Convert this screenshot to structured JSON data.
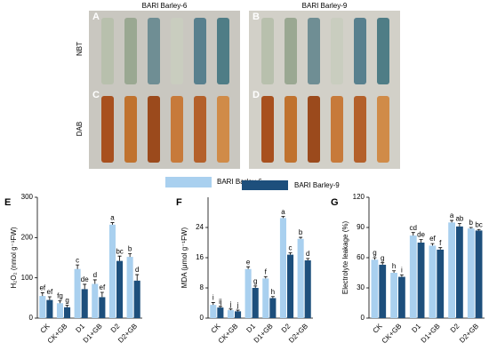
{
  "photos": {
    "col1": "BARI Barley-6",
    "col2": "BARI Barley-9",
    "row1": "NBT",
    "row2": "DAB",
    "panels": [
      "A",
      "B",
      "C",
      "D"
    ]
  },
  "chart_data": [
    {
      "type": "bar",
      "panel": "E",
      "ylabel": "H₂O₂ (nmol g⁻¹FW)",
      "ylim": [
        0,
        300
      ],
      "yticks": [
        0,
        100,
        200,
        300
      ],
      "categories": [
        "CK",
        "CK+GB",
        "D1",
        "D1+GB",
        "D2",
        "D2+GB"
      ],
      "series": [
        {
          "name": "BARI Barley-6",
          "color": "#a9d0ef",
          "values": [
            55,
            37,
            122,
            85,
            232,
            152
          ],
          "errors": [
            8,
            6,
            10,
            10,
            5,
            8
          ],
          "letters": [
            "ef",
            "fg",
            "c",
            "d",
            "a",
            "b"
          ]
        },
        {
          "name": "BARI Barley-9",
          "color": "#1d4f7c",
          "values": [
            45,
            27,
            72,
            52,
            142,
            93
          ],
          "errors": [
            8,
            5,
            12,
            12,
            12,
            15
          ],
          "letters": [
            "ef",
            "g",
            "de",
            "ef",
            "bc",
            "d"
          ]
        }
      ]
    },
    {
      "type": "bar",
      "panel": "F",
      "ylabel": "MDA (μmol g⁻¹FW)",
      "ylim": [
        0,
        32
      ],
      "yticks": [
        0,
        8,
        16,
        24
      ],
      "categories": [
        "CK",
        "CK+GB",
        "D1",
        "D1+GB",
        "D2",
        "D2+GB"
      ],
      "series": [
        {
          "name": "BARI Barley-6",
          "color": "#a9d0ef",
          "values": [
            3.5,
            2.1,
            13,
            10.5,
            26.5,
            21
          ],
          "errors": [
            0.6,
            0.3,
            0.6,
            0.5,
            0.4,
            0.4
          ],
          "letters": [
            "i",
            "j",
            "e",
            "f",
            "a",
            "b"
          ]
        },
        {
          "name": "BARI Barley-9",
          "color": "#1d4f7c",
          "values": [
            2.8,
            1.8,
            8,
            5.3,
            16.8,
            15.3
          ],
          "errors": [
            0.3,
            0.3,
            0.5,
            0.4,
            0.5,
            0.5
          ],
          "letters": [
            "ij",
            "j",
            "g",
            "h",
            "c",
            "d"
          ]
        }
      ]
    },
    {
      "type": "bar",
      "panel": "G",
      "ylabel": "Electrolyte leakage (%)",
      "ylim": [
        0,
        120
      ],
      "yticks": [
        0,
        30,
        60,
        90,
        120
      ],
      "categories": [
        "CK",
        "CK+GB",
        "D1",
        "D1+GB",
        "D2",
        "D2+GB"
      ],
      "series": [
        {
          "name": "BARI Barley-6",
          "color": "#a9d0ef",
          "values": [
            58,
            45,
            82,
            72,
            95,
            89
          ],
          "errors": [
            2,
            2,
            3,
            2,
            2,
            1
          ],
          "letters": [
            "g",
            "h",
            "cd",
            "ef",
            "a",
            "b"
          ]
        },
        {
          "name": "BARI Barley-9",
          "color": "#1d4f7c",
          "values": [
            53,
            41,
            75,
            68,
            91,
            87
          ],
          "errors": [
            2,
            2,
            3,
            2,
            3,
            1
          ],
          "letters": [
            "g",
            "i",
            "de",
            "f",
            "ab",
            "bc"
          ]
        }
      ]
    }
  ]
}
